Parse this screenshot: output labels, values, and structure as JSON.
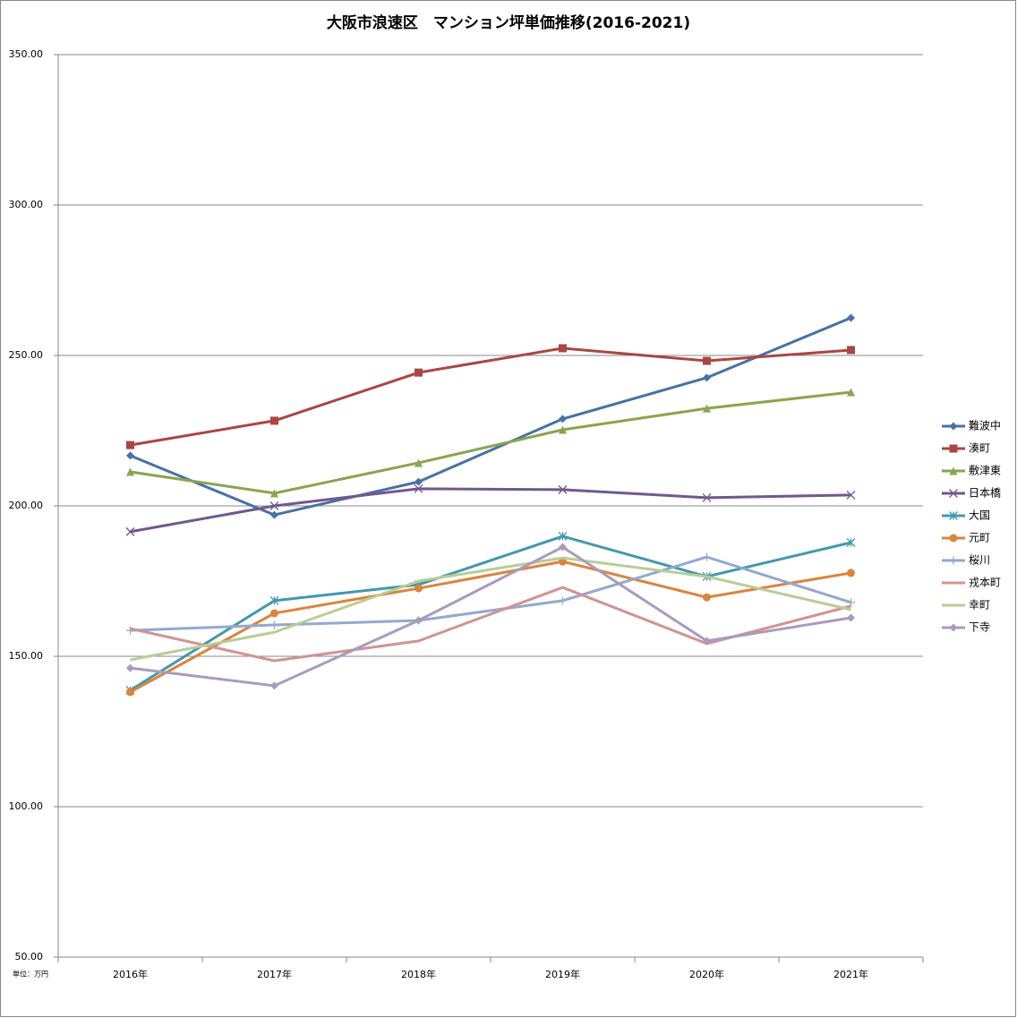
{
  "chart_data": {
    "type": "line",
    "title": "大阪市浪速区　マンション坪単価推移(2016-2021)",
    "unit_note": "単位：万円",
    "categories": [
      "2016年",
      "2017年",
      "2018年",
      "2019年",
      "2020年",
      "2021年"
    ],
    "ylim": [
      50,
      350
    ],
    "yticks": [
      {
        "value": 50,
        "label": "50.00"
      },
      {
        "value": 100,
        "label": "100.00"
      },
      {
        "value": 150,
        "label": "150.00"
      },
      {
        "value": 200,
        "label": "200.00"
      },
      {
        "value": 250,
        "label": "250.00"
      },
      {
        "value": 300,
        "label": "300.00"
      },
      {
        "value": 350,
        "label": "350.00"
      }
    ],
    "grid": true,
    "legend": "right",
    "series": [
      {
        "name": "難波中",
        "color": "#4572a7",
        "marker": "diamond",
        "values": [
          216.7,
          197.0,
          208.0,
          228.9,
          242.6,
          262.5
        ]
      },
      {
        "name": "湊町",
        "color": "#aa4643",
        "marker": "square",
        "values": [
          220.2,
          228.3,
          244.3,
          252.4,
          248.2,
          251.8
        ]
      },
      {
        "name": "敷津東",
        "color": "#89a54e",
        "marker": "triangle",
        "values": [
          211.3,
          204.2,
          214.3,
          225.3,
          232.4,
          237.8
        ]
      },
      {
        "name": "日本橋",
        "color": "#71588f",
        "marker": "x",
        "values": [
          191.4,
          200.0,
          205.7,
          205.4,
          202.7,
          203.6
        ]
      },
      {
        "name": "大国",
        "color": "#4198af",
        "marker": "star",
        "values": [
          138.7,
          168.5,
          173.8,
          189.9,
          176.5,
          187.8
        ]
      },
      {
        "name": "元町",
        "color": "#db843d",
        "marker": "circle",
        "values": [
          138.1,
          164.3,
          172.6,
          181.5,
          169.6,
          177.7
        ]
      },
      {
        "name": "桜川",
        "color": "#93a9cf",
        "marker": "plus",
        "values": [
          158.6,
          160.4,
          161.9,
          168.5,
          183.0,
          167.9
        ]
      },
      {
        "name": "戎本町",
        "color": "#d19392",
        "marker": "none",
        "values": [
          159.2,
          148.5,
          155.1,
          172.9,
          154.2,
          166.7
        ]
      },
      {
        "name": "幸町",
        "color": "#b9cd96",
        "marker": "none",
        "values": [
          148.8,
          158.0,
          175.0,
          182.7,
          176.5,
          165.5
        ]
      },
      {
        "name": "下寺",
        "color": "#a99bbd",
        "marker": "diamond",
        "values": [
          146.1,
          140.2,
          161.9,
          186.3,
          155.1,
          162.8
        ]
      }
    ]
  }
}
